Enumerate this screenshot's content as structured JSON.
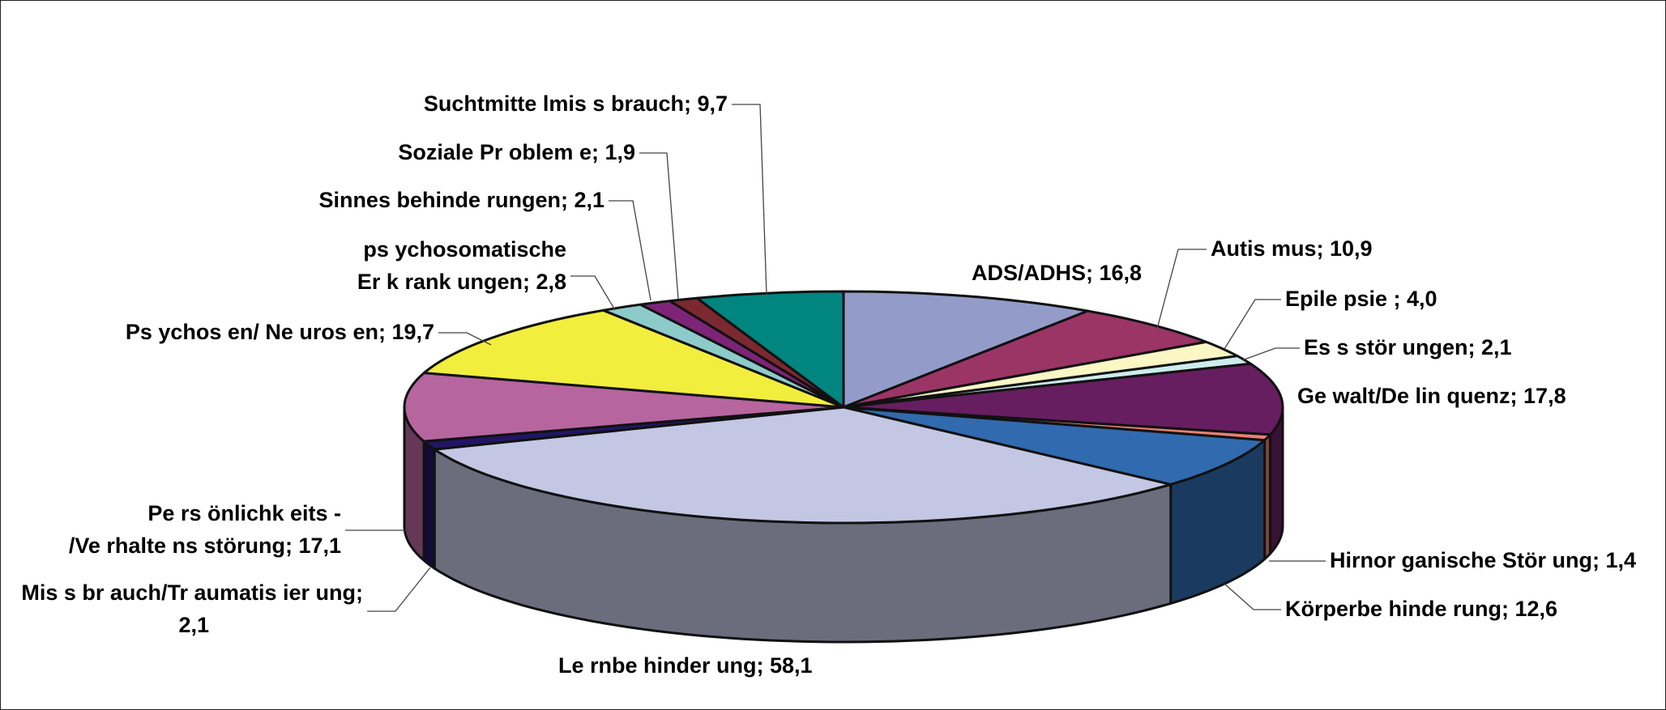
{
  "chart_data": {
    "type": "pie",
    "title": "",
    "legend": "none",
    "slices": [
      {
        "label": "ADS/ADHS; 16,8",
        "name": "ADS/ADHS",
        "value": 16.8,
        "color": "#939CC9"
      },
      {
        "label": "Autismus; 10,9",
        "name": "Autismus",
        "value": 10.9,
        "color": "#9B3566"
      },
      {
        "label": "Epilepsie; 4,0",
        "name": "Epilepsie",
        "value": 4.0,
        "color": "#FAF7C5"
      },
      {
        "label": "Essstörungen; 2,1",
        "name": "Essstörungen",
        "value": 2.1,
        "color": "#CDEDED"
      },
      {
        "label": "Gewalt/Delinquenz; 17,8",
        "name": "Gewalt/Delinquenz",
        "value": 17.8,
        "color": "#661E60"
      },
      {
        "label": "Hirnorganische Störung; 1,4",
        "name": "Hirnorganische Störung",
        "value": 1.4,
        "color": "#E88070"
      },
      {
        "label": "Körperbehinderung; 12,6",
        "name": "Körperbehinderung",
        "value": 12.6,
        "color": "#316AAE"
      },
      {
        "label": "Lernbehinderung; 58,1",
        "name": "Lernbehinderung",
        "value": 58.1,
        "color": "#C3C7E3"
      },
      {
        "label": "Missbrauch/Traumatisierung; 2,1",
        "name": "Missbrauch/Traumatisierung",
        "value": 2.1,
        "color": "#221566"
      },
      {
        "label": "Persönlichkeits-/Verhaltensstörung; 17,1",
        "name": "Persönlichkeits-/Verhaltensstörung",
        "value": 17.1,
        "color": "#B7659F"
      },
      {
        "label": "Psychosen/ Neurosen; 19,7",
        "name": "Psychosen/ Neurosen",
        "value": 19.7,
        "color": "#F2EE3D"
      },
      {
        "label": "psychosomatische Erkrankungen; 2,8",
        "name": "psychosomatische Erkrankungen",
        "value": 2.8,
        "color": "#8DCBCB"
      },
      {
        "label": "Sinnesbehinderungen; 2,1",
        "name": "Sinnesbehinderungen",
        "value": 2.1,
        "color": "#7E2478"
      },
      {
        "label": "Soziale Probleme; 1,9",
        "name": "Soziale Probleme",
        "value": 1.9,
        "color": "#7C2830"
      },
      {
        "label": "Suchtmittelmissbrauch; 9,7",
        "name": "Suchtmittelmissbrauch",
        "value": 9.7,
        "color": "#00857F"
      }
    ],
    "label_lines": {
      "ADS/ADHS": [
        "ADS/ADHS; 16,8"
      ],
      "Autismus": [
        "Autis mus; 10,9"
      ],
      "Epilepsie": [
        "Epile psie ; 4,0"
      ],
      "Essstörungen": [
        "Es s stör ungen; 2,1"
      ],
      "Gewalt/Delinquenz": [
        "Ge walt/De lin quenz; 17,8"
      ],
      "Hirnorganische Störung": [
        "Hirnor ganische Stör ung; 1,4"
      ],
      "Körperbehinderung": [
        "Körperbe hinde rung; 12,6"
      ],
      "Lernbehinderung": [
        "Le rnbe hinder ung; 58,1"
      ],
      "Missbrauch/Traumatisierung": [
        "Mis s br auch/Tr aumatis ier ung;",
        "2,1"
      ],
      "Persönlichkeits-/Verhaltensstörung": [
        "Pe rs önlichk eits -",
        "/Ve rhalte ns störung; 17,1"
      ],
      "Psychosen/ Neurosen": [
        "Ps ychos en/ Ne uros en; 19,7"
      ],
      "psychosomatische Erkrankungen": [
        "ps ychosomatische",
        "Er k rank ungen; 2,8"
      ],
      "Sinnesbehinderungen": [
        "Sinnes behinde rungen; 2,1"
      ],
      "Soziale Probleme": [
        "Soziale Pr oblem e; 1,9"
      ],
      "Suchtmittelmissbrauch": [
        "Suchtmitte lmis s brauch; 9,7"
      ]
    }
  }
}
